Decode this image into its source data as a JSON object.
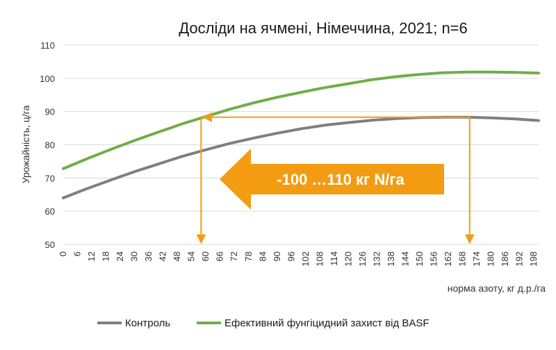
{
  "chart_data": {
    "type": "line",
    "title": "Досліди на ячмені, Німеччина, 2021; n=6",
    "xlabel": "норма азоту, кг д.р./га",
    "ylabel": "Урожайність, ц/га",
    "xlim": [
      0,
      200
    ],
    "ylim": [
      50,
      110
    ],
    "x_ticks": [
      "0",
      "6",
      "12",
      "18",
      "24",
      "30",
      "36",
      "42",
      "48",
      "54",
      "60",
      "66",
      "72",
      "78",
      "84",
      "90",
      "96",
      "102",
      "108",
      "114",
      "120",
      "126",
      "132",
      "138",
      "144",
      "150",
      "156",
      "162",
      "168",
      "174",
      "180",
      "186",
      "192",
      "198"
    ],
    "y_ticks": [
      "50",
      "60",
      "70",
      "80",
      "90",
      "100",
      "110"
    ],
    "grid": true,
    "legend_position": "bottom",
    "series": [
      {
        "name": "Контроль",
        "color": "#7f7f7f",
        "x": [
          0,
          10,
          20,
          30,
          40,
          50,
          60,
          70,
          80,
          90,
          100,
          110,
          120,
          130,
          140,
          150,
          160,
          170,
          180,
          190,
          200
        ],
        "y": [
          64.0,
          66.8,
          69.4,
          71.9,
          74.2,
          76.5,
          78.5,
          80.4,
          82.0,
          83.5,
          84.8,
          85.9,
          86.7,
          87.4,
          87.9,
          88.2,
          88.3,
          88.3,
          88.1,
          87.8,
          87.3
        ]
      },
      {
        "name": "Ефективний фунгіцидний захист від BASF",
        "color": "#70ad47",
        "x": [
          0,
          10,
          20,
          30,
          40,
          50,
          60,
          70,
          80,
          90,
          100,
          110,
          120,
          130,
          140,
          150,
          160,
          170,
          180,
          190,
          200
        ],
        "y": [
          72.8,
          75.8,
          78.6,
          81.3,
          83.8,
          86.3,
          88.5,
          90.7,
          92.6,
          94.3,
          95.8,
          97.2,
          98.4,
          99.6,
          100.5,
          101.2,
          101.7,
          101.9,
          101.9,
          101.8,
          101.6
        ]
      }
    ],
    "annotation": {
      "text": "-100 …110 кг N/га",
      "color": "#f39c12",
      "level_y": 88.3,
      "x_start": 58,
      "x_end": 171
    }
  }
}
